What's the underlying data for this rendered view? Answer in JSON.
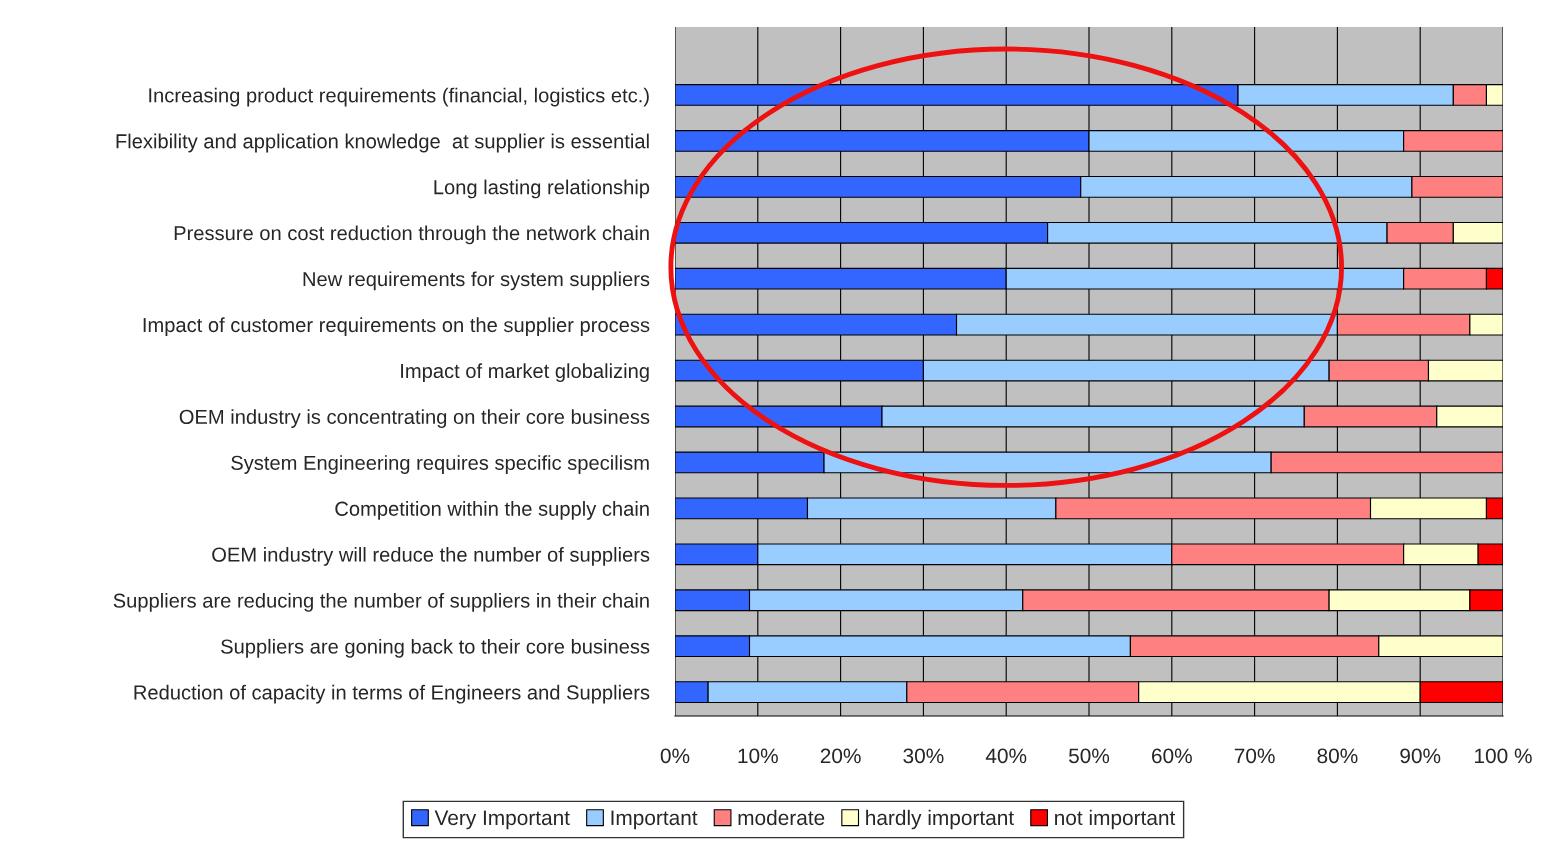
{
  "chart_data": {
    "type": "bar",
    "orientation": "horizontal",
    "stacked": true,
    "categories": [
      "Increasing product requirements (financial, logistics etc.)",
      "Flexibility and application knowledge  at supplier is essential",
      "Long lasting relationship",
      "Pressure on cost reduction through the network chain",
      "New requirements for system suppliers",
      "Impact of customer requirements on the supplier process",
      "Impact of market globalizing",
      "OEM industry is concentrating on their core business",
      "System Engineering requires specific specilism",
      "Competition within the supply chain",
      "OEM industry will reduce the number of suppliers",
      "Suppliers are reducing the number of suppliers in their chain",
      "Suppliers are goning back to their core business",
      "Reduction of capacity in terms of Engineers and Suppliers"
    ],
    "series": [
      {
        "name": "Very Important",
        "color": "#3366ff",
        "values": [
          68,
          50,
          49,
          45,
          40,
          34,
          30,
          25,
          18,
          16,
          10,
          9,
          9,
          4
        ]
      },
      {
        "name": "Important",
        "color": "#99ccff",
        "values": [
          26,
          38,
          40,
          41,
          48,
          46,
          49,
          51,
          54,
          30,
          50,
          33,
          46,
          24
        ]
      },
      {
        "name": "moderate",
        "color": "#ff8080",
        "values": [
          4,
          12,
          11,
          8,
          10,
          16,
          12,
          16,
          28,
          38,
          28,
          37,
          30,
          28
        ]
      },
      {
        "name": "hardly important",
        "color": "#ffffcc",
        "values": [
          2,
          null,
          null,
          6,
          null,
          4,
          9,
          8,
          null,
          14,
          9,
          17,
          15,
          34
        ]
      },
      {
        "name": "not important",
        "color": "#ff0000",
        "values": [
          null,
          null,
          null,
          null,
          2,
          null,
          null,
          null,
          null,
          2,
          3,
          4,
          null,
          10
        ]
      }
    ],
    "xlim": [
      0,
      100
    ],
    "xticks": [
      {
        "value": 0,
        "label": "0%"
      },
      {
        "value": 10,
        "label": "10%"
      },
      {
        "value": 20,
        "label": "20%"
      },
      {
        "value": 30,
        "label": "30%"
      },
      {
        "value": 40,
        "label": "40%"
      },
      {
        "value": 50,
        "label": "50%"
      },
      {
        "value": 60,
        "label": "60%"
      },
      {
        "value": 70,
        "label": "70%"
      },
      {
        "value": 80,
        "label": "80%"
      },
      {
        "value": 90,
        "label": "90%"
      },
      {
        "value": 100,
        "label": "100 %"
      }
    ],
    "grid": "x",
    "legend": "bottom"
  }
}
